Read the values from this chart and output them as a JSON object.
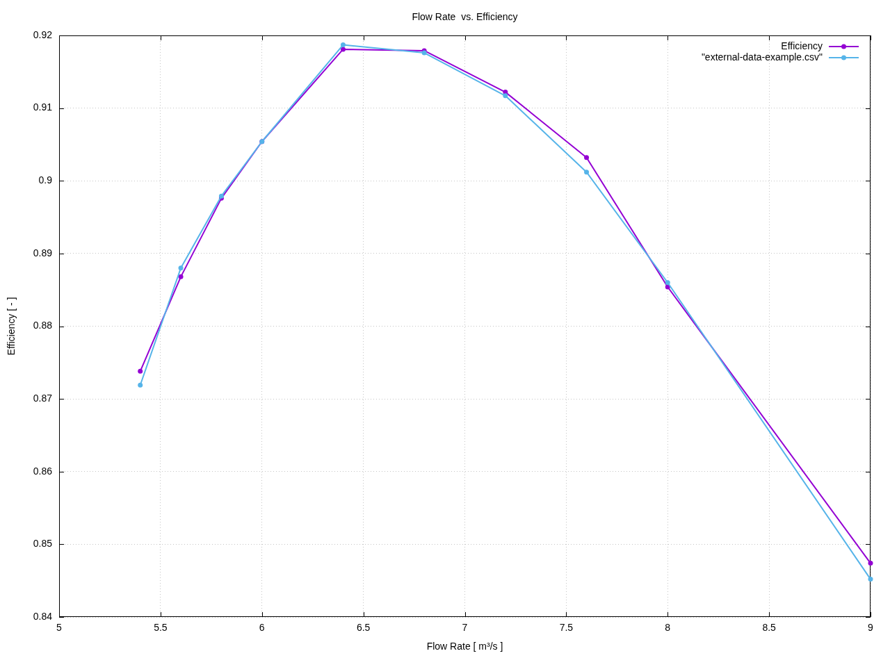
{
  "chart_data": {
    "type": "line",
    "title": "Flow Rate  vs. Efficiency",
    "xlabel": "Flow Rate [ m³/s ]",
    "ylabel": "Efficiency [ - ]",
    "x": [
      5.4,
      5.6,
      5.8,
      6.0,
      6.4,
      6.8,
      7.2,
      7.6,
      8.0,
      9.0
    ],
    "series": [
      {
        "name": "Efficiency",
        "color": "#9400d3",
        "values": [
          0.8738,
          0.8868,
          0.8976,
          0.9054,
          0.9181,
          0.9179,
          0.9122,
          0.9032,
          0.8854,
          0.8474
        ]
      },
      {
        "name": "\"external-data-example.csv\"",
        "color": "#56b4e9",
        "values": [
          0.8719,
          0.888,
          0.8979,
          0.9054,
          0.9187,
          0.9176,
          0.9117,
          0.9012,
          0.886,
          0.8452
        ]
      }
    ],
    "xlim": [
      5,
      9
    ],
    "xticks": [
      5,
      5.5,
      6,
      6.5,
      7,
      7.5,
      8,
      8.5,
      9
    ],
    "ylim": [
      0.84,
      0.92
    ],
    "yticks": [
      0.84,
      0.85,
      0.86,
      0.87,
      0.88,
      0.89,
      0.9,
      0.91,
      0.92
    ],
    "grid": true,
    "legend": "top right",
    "marker": "circle",
    "line_style": "solid"
  }
}
